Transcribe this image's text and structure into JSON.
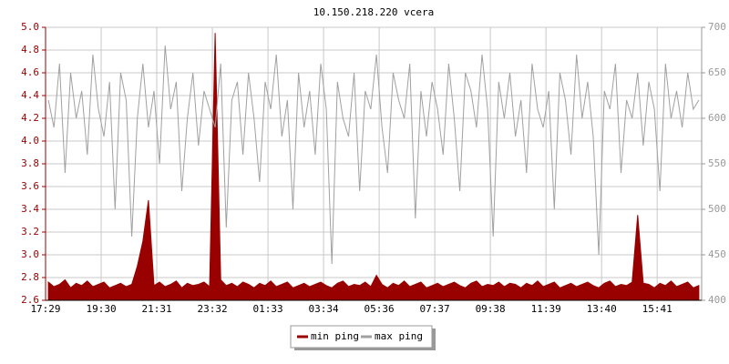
{
  "chart_data": {
    "type": "line",
    "title": "10.150.218.220 vcera",
    "categories": [
      "17:29",
      null,
      null,
      null,
      null,
      null,
      null,
      null,
      null,
      null,
      "19:30",
      null,
      null,
      null,
      null,
      null,
      null,
      null,
      null,
      null,
      "21:31",
      null,
      null,
      null,
      null,
      null,
      null,
      null,
      null,
      null,
      "23:32",
      null,
      null,
      null,
      null,
      null,
      null,
      null,
      null,
      null,
      "01:33",
      null,
      null,
      null,
      null,
      null,
      null,
      null,
      null,
      null,
      "03:34",
      null,
      null,
      null,
      null,
      null,
      null,
      null,
      null,
      null,
      "05:36",
      null,
      null,
      null,
      null,
      null,
      null,
      null,
      null,
      null,
      "07:37",
      null,
      null,
      null,
      null,
      null,
      null,
      null,
      null,
      null,
      "09:38",
      null,
      null,
      null,
      null,
      null,
      null,
      null,
      null,
      null,
      "11:39",
      null,
      null,
      null,
      null,
      null,
      null,
      null,
      null,
      null,
      "13:40",
      null,
      null,
      null,
      null,
      null,
      null,
      null,
      null,
      null,
      "15:41",
      null,
      null,
      null,
      null,
      null,
      null,
      null
    ],
    "series": [
      {
        "name": "min ping",
        "color": "#990000",
        "fill": true,
        "values": [
          2.76,
          2.72,
          2.74,
          2.78,
          2.71,
          2.75,
          2.73,
          2.77,
          2.72,
          2.74,
          2.76,
          2.71,
          2.73,
          2.75,
          2.72,
          2.74,
          2.9,
          3.12,
          3.48,
          2.73,
          2.76,
          2.72,
          2.74,
          2.77,
          2.71,
          2.75,
          2.73,
          2.74,
          2.76,
          2.72,
          4.95,
          2.78,
          2.73,
          2.75,
          2.72,
          2.76,
          2.74,
          2.71,
          2.75,
          2.73,
          2.77,
          2.72,
          2.74,
          2.76,
          2.71,
          2.73,
          2.75,
          2.72,
          2.74,
          2.76,
          2.73,
          2.71,
          2.75,
          2.77,
          2.72,
          2.74,
          2.73,
          2.76,
          2.72,
          2.82,
          2.74,
          2.71,
          2.75,
          2.73,
          2.77,
          2.72,
          2.74,
          2.76,
          2.71,
          2.73,
          2.75,
          2.72,
          2.74,
          2.76,
          2.73,
          2.71,
          2.75,
          2.77,
          2.72,
          2.74,
          2.73,
          2.76,
          2.72,
          2.75,
          2.74,
          2.71,
          2.75,
          2.73,
          2.77,
          2.72,
          2.74,
          2.76,
          2.71,
          2.73,
          2.75,
          2.72,
          2.74,
          2.76,
          2.73,
          2.71,
          2.75,
          2.77,
          2.72,
          2.74,
          2.73,
          2.76,
          3.35,
          2.75,
          2.74,
          2.71,
          2.75,
          2.73,
          2.77,
          2.72,
          2.74,
          2.76,
          2.71,
          2.73
        ]
      },
      {
        "name": "max ping",
        "color": "#a0a0a0",
        "axis": "y2",
        "values": [
          620,
          590,
          660,
          540,
          650,
          600,
          630,
          560,
          670,
          610,
          580,
          640,
          500,
          650,
          620,
          470,
          600,
          660,
          590,
          630,
          550,
          680,
          610,
          640,
          520,
          600,
          650,
          570,
          630,
          610,
          590,
          660,
          480,
          620,
          640,
          560,
          650,
          600,
          530,
          640,
          610,
          670,
          580,
          620,
          500,
          650,
          590,
          630,
          560,
          660,
          610,
          440,
          640,
          600,
          580,
          650,
          520,
          630,
          610,
          670,
          590,
          540,
          650,
          620,
          600,
          660,
          490,
          630,
          580,
          640,
          610,
          560,
          660,
          600,
          520,
          650,
          630,
          590,
          670,
          610,
          470,
          640,
          600,
          650,
          580,
          620,
          540,
          660,
          610,
          590,
          630,
          500,
          650,
          620,
          560,
          670,
          600,
          640,
          580,
          450,
          630,
          610,
          660,
          540,
          620,
          600,
          650,
          570,
          640,
          610,
          520,
          660,
          600,
          630,
          590,
          650,
          610,
          620
        ]
      }
    ],
    "ylim": [
      2.6,
      5.0
    ],
    "yticks": [
      2.6,
      2.8,
      {
        "value": 3,
        "label": "3.0"
      },
      3.2,
      3.4,
      3.6,
      3.8,
      {
        "value": 4,
        "label": "4.0"
      },
      4.2,
      4.4,
      4.6,
      4.8,
      {
        "value": 5,
        "label": "5.0"
      }
    ],
    "y2lim": [
      400,
      700
    ],
    "y2ticks": [
      400,
      450,
      500,
      550,
      600,
      650,
      700
    ],
    "grid": true
  }
}
